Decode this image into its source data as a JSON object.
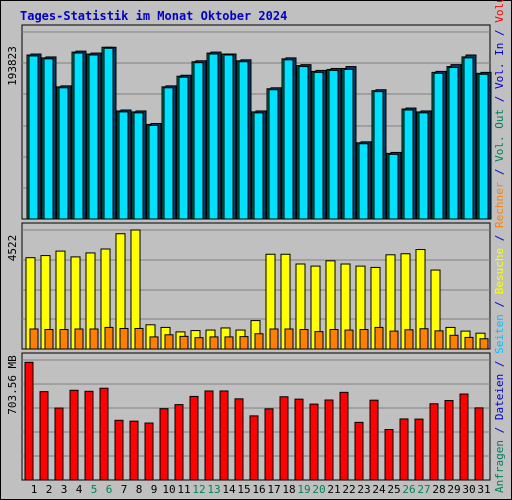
{
  "title": "Tages-Statistik im Monat Oktober 2024",
  "right_label": {
    "top": [
      {
        "text": "Anfragen",
        "color": "#00805c"
      },
      {
        "text": " / ",
        "color": "#0000cc"
      },
      {
        "text": "Dateien",
        "color": "#0000cc"
      },
      {
        "text": " / ",
        "color": "#0000cc"
      },
      {
        "text": "Seiten",
        "color": "#00c0ff"
      },
      {
        "text": " / ",
        "color": "#0000cc"
      },
      {
        "text": "Besuche",
        "color": "#ffff00"
      },
      {
        "text": " / ",
        "color": "#0000cc"
      },
      {
        "text": "Rechner",
        "color": "#ff8000"
      },
      {
        "text": " / ",
        "color": "#0000cc"
      },
      {
        "text": "Vol. Out",
        "color": "#00805c"
      },
      {
        "text": " / ",
        "color": "#0000cc"
      },
      {
        "text": "Vol. In",
        "color": "#0000cc"
      },
      {
        "text": " / ",
        "color": "#0000cc"
      },
      {
        "text": "Volumen",
        "color": "#ff0000"
      }
    ]
  },
  "colors": {
    "background": "#c0c0c0",
    "title": "#0000cc",
    "hits": "#00805c",
    "files": "#0000ff",
    "pages": "#00e0ff",
    "visits": "#ffff00",
    "sites": "#ff8000",
    "volume": "#ff0000",
    "weekend_label": "#00805c",
    "weekday_label": "#000000"
  },
  "chart_data": [
    {
      "type": "bar",
      "panel": "requests",
      "y_max_label": "193823",
      "ylim": [
        0,
        193823
      ],
      "categories": [
        "1",
        "2",
        "3",
        "4",
        "5",
        "6",
        "7",
        "8",
        "9",
        "10",
        "11",
        "12",
        "13",
        "14",
        "15",
        "16",
        "17",
        "18",
        "19",
        "20",
        "21",
        "22",
        "23",
        "24",
        "25",
        "26",
        "27",
        "28",
        "29",
        "30",
        "31"
      ],
      "weekend_days": [
        "5",
        "6",
        "12",
        "13",
        "19",
        "20",
        "26",
        "27"
      ],
      "series": [
        {
          "name": "Anfragen",
          "values": [
            170000,
            167000,
            137000,
            173000,
            171000,
            178000,
            112000,
            111000,
            98000,
            137000,
            148000,
            163000,
            172000,
            171000,
            164000,
            111000,
            135000,
            166000,
            159000,
            153000,
            155000,
            156000,
            79000,
            133000,
            68000,
            114000,
            111000,
            152000,
            158000,
            168000,
            151000
          ]
        },
        {
          "name": "Dateien",
          "values": [
            171000,
            168000,
            138000,
            174000,
            172000,
            178000,
            113000,
            112000,
            99000,
            138000,
            149000,
            164000,
            173000,
            171000,
            165000,
            112000,
            136000,
            167000,
            160000,
            154000,
            156000,
            158000,
            80000,
            134000,
            69000,
            115000,
            112000,
            153000,
            160000,
            170000,
            152000
          ]
        },
        {
          "name": "Seiten",
          "values": [
            169000,
            166000,
            136000,
            172000,
            170000,
            177000,
            111000,
            110000,
            97000,
            136000,
            147000,
            162000,
            171000,
            170000,
            163000,
            110000,
            134000,
            165000,
            158000,
            152000,
            154000,
            155000,
            78000,
            132000,
            67000,
            113000,
            110000,
            151000,
            157000,
            167000,
            150000
          ]
        }
      ]
    },
    {
      "type": "bar",
      "panel": "visits",
      "y_max_label": "4522",
      "ylim": [
        0,
        4522
      ],
      "categories": [
        "1",
        "2",
        "3",
        "4",
        "5",
        "6",
        "7",
        "8",
        "9",
        "10",
        "11",
        "12",
        "13",
        "14",
        "15",
        "16",
        "17",
        "18",
        "19",
        "20",
        "21",
        "22",
        "23",
        "24",
        "25",
        "26",
        "27",
        "28",
        "29",
        "30",
        "31"
      ],
      "series": [
        {
          "name": "Besuche",
          "values": [
            3470,
            3550,
            3720,
            3500,
            3650,
            3800,
            4380,
            4522,
            920,
            820,
            650,
            700,
            720,
            800,
            720,
            1080,
            3600,
            3600,
            3230,
            3150,
            3350,
            3230,
            3150,
            3100,
            3580,
            3620,
            3780,
            3000,
            820,
            680,
            600
          ]
        },
        {
          "name": "Rechner",
          "values": [
            760,
            740,
            740,
            760,
            760,
            820,
            780,
            780,
            460,
            540,
            480,
            430,
            460,
            460,
            470,
            580,
            760,
            760,
            740,
            660,
            740,
            720,
            740,
            820,
            680,
            730,
            770,
            690,
            520,
            440,
            390
          ]
        }
      ]
    },
    {
      "type": "bar",
      "panel": "volume",
      "y_max_label": "703.56 MB",
      "ylim": [
        0,
        703.56
      ],
      "categories": [
        "1",
        "2",
        "3",
        "4",
        "5",
        "6",
        "7",
        "8",
        "9",
        "10",
        "11",
        "12",
        "13",
        "14",
        "15",
        "16",
        "17",
        "18",
        "19",
        "20",
        "21",
        "22",
        "23",
        "24",
        "25",
        "26",
        "27",
        "28",
        "29",
        "30",
        "31"
      ],
      "series": [
        {
          "name": "Volumen",
          "values": [
            690,
            518,
            422,
            526,
            520,
            538,
            350,
            345,
            334,
            418,
            442,
            490,
            522,
            522,
            476,
            376,
            417,
            488,
            474,
            445,
            469,
            514,
            338,
            468,
            296,
            358,
            357,
            447,
            466,
            504,
            423
          ]
        }
      ]
    }
  ]
}
